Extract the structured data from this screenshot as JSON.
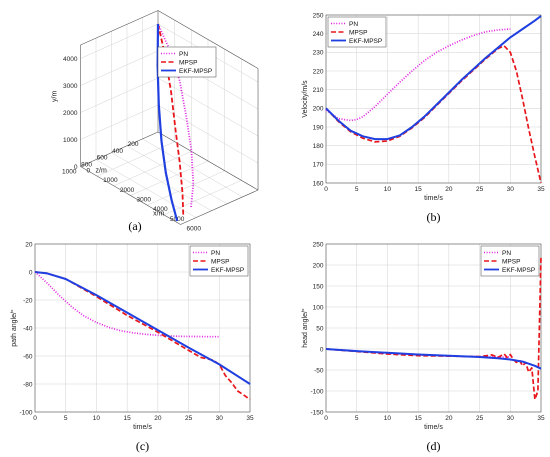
{
  "chart_data": [
    {
      "id": "a",
      "caption": "(a)",
      "type": "line3d",
      "xlabel": "x/m",
      "ylabel": "y/m",
      "zlabel": "z/m",
      "x_ticks": [
        "0",
        "1000",
        "2000",
        "3000",
        "4000",
        "5000",
        "6000"
      ],
      "y_ticks": [
        "0",
        "1000",
        "2000",
        "3000",
        "4000"
      ],
      "z_ticks": [
        "200",
        "400",
        "600",
        "800",
        "1000"
      ],
      "legend": {
        "position": "top-right",
        "entries": [
          "PN",
          "MPSP",
          "EKF-MPSP"
        ]
      },
      "series": [
        {
          "name": "PN",
          "color": "#e020e0",
          "dash": "dot",
          "points": [
            [
              0,
              4000,
              0
            ],
            [
              1000,
              3450,
              60
            ],
            [
              2000,
              2800,
              150
            ],
            [
              3000,
              2000,
              280
            ],
            [
              4000,
              1300,
              430
            ],
            [
              5000,
              650,
              620
            ],
            [
              5600,
              180,
              780
            ]
          ]
        },
        {
          "name": "MPSP",
          "color": "#e8161b",
          "dash": "dash",
          "points": [
            [
              0,
              4000,
              0
            ],
            [
              1000,
              3300,
              120
            ],
            [
              2000,
              2500,
              260
            ],
            [
              3000,
              1700,
              420
            ],
            [
              4000,
              1050,
              580
            ],
            [
              5000,
              500,
              760
            ],
            [
              5700,
              90,
              900
            ]
          ]
        },
        {
          "name": "EKF-MPSP",
          "color": "#1f3fe0",
          "dash": "solid",
          "points": [
            [
              0,
              4000,
              0
            ],
            [
              1000,
              3100,
              220
            ],
            [
              2000,
              2250,
              420
            ],
            [
              3000,
              1500,
              600
            ],
            [
              4000,
              900,
              760
            ],
            [
              5000,
              420,
              900
            ],
            [
              5800,
              60,
              1000
            ]
          ]
        }
      ]
    },
    {
      "id": "b",
      "caption": "(b)",
      "type": "line",
      "xlabel": "time/s",
      "ylabel": "Velocity/m/s",
      "xlim": [
        0,
        35
      ],
      "ylim": [
        160,
        250
      ],
      "x_ticks": [
        0,
        5,
        10,
        15,
        20,
        25,
        30,
        35
      ],
      "y_ticks": [
        160,
        170,
        180,
        190,
        200,
        210,
        220,
        230,
        240,
        250
      ],
      "legend": {
        "position": "top-left",
        "entries": [
          "PN",
          "MPSP",
          "EKF-MPSP"
        ]
      },
      "series": [
        {
          "name": "PN",
          "color": "#e020e0",
          "dash": "dot",
          "x": [
            0,
            2,
            4,
            5,
            6,
            8,
            10,
            12,
            14,
            16,
            18,
            20,
            22,
            24,
            26,
            28,
            30
          ],
          "y": [
            199,
            194.5,
            193.5,
            194,
            195.5,
            201,
            207.5,
            214,
            220,
            225.5,
            230,
            233.5,
            236.5,
            239,
            241,
            242,
            242.5
          ]
        },
        {
          "name": "MPSP",
          "color": "#e8161b",
          "dash": "dash",
          "x": [
            0,
            2,
            4,
            6,
            8,
            10,
            12,
            14,
            16,
            18,
            20,
            22,
            24,
            26,
            28,
            29,
            30,
            31,
            32,
            33,
            34,
            35
          ],
          "y": [
            200,
            193,
            187.5,
            184,
            182,
            182.5,
            185,
            189.5,
            195,
            201.5,
            208,
            214.5,
            220.5,
            226.5,
            232,
            233.5,
            230,
            220,
            205,
            189,
            174,
            160
          ]
        },
        {
          "name": "EKF-MPSP",
          "color": "#1f3fe0",
          "dash": "solid",
          "x": [
            0,
            2,
            4,
            6,
            8,
            10,
            12,
            14,
            16,
            18,
            20,
            22,
            24,
            26,
            28,
            30,
            32,
            34,
            35
          ],
          "y": [
            200,
            193.5,
            188,
            185,
            183.5,
            183.5,
            185.5,
            190,
            195.5,
            202,
            208.5,
            215,
            221,
            227,
            232.5,
            238,
            242.5,
            247,
            249.5
          ]
        }
      ]
    },
    {
      "id": "c",
      "caption": "(c)",
      "type": "line",
      "xlabel": "time/s",
      "ylabel": "path angle/°",
      "xlim": [
        0,
        35
      ],
      "ylim": [
        -100,
        20
      ],
      "x_ticks": [
        0,
        5,
        10,
        15,
        20,
        25,
        30,
        35
      ],
      "y_ticks": [
        -100,
        -80,
        -60,
        -40,
        -20,
        0,
        20
      ],
      "legend": {
        "position": "top-right",
        "entries": [
          "PN",
          "MPSP",
          "EKF-MPSP"
        ]
      },
      "series": [
        {
          "name": "PN",
          "color": "#e020e0",
          "dash": "dot",
          "x": [
            0,
            2,
            4,
            6,
            8,
            10,
            12,
            14,
            16,
            18,
            20,
            22,
            24,
            26,
            28,
            30
          ],
          "y": [
            0,
            -8,
            -17,
            -25,
            -31.5,
            -36,
            -39.5,
            -42,
            -43.5,
            -44.5,
            -45.2,
            -45.7,
            -46,
            -46.1,
            -46.2,
            -46.2
          ]
        },
        {
          "name": "MPSP",
          "color": "#e8161b",
          "dash": "dash",
          "x": [
            0,
            2,
            5,
            10,
            15,
            20,
            25,
            27,
            28,
            29,
            30,
            31,
            32,
            33,
            34,
            35
          ],
          "y": [
            0,
            -1,
            -5,
            -17.5,
            -31,
            -43,
            -56,
            -61,
            -62,
            -63,
            -66,
            -74,
            -79,
            -85,
            -88,
            -91
          ]
        },
        {
          "name": "EKF-MPSP",
          "color": "#1f3fe0",
          "dash": "solid",
          "x": [
            0,
            2,
            5,
            10,
            15,
            20,
            25,
            30,
            35
          ],
          "y": [
            0,
            -1,
            -5,
            -16.5,
            -29,
            -41.5,
            -54,
            -66,
            -80
          ]
        }
      ]
    },
    {
      "id": "d",
      "caption": "(d)",
      "type": "line",
      "xlabel": "time/s",
      "ylabel": "head angle/°",
      "xlim": [
        0,
        35
      ],
      "ylim": [
        -150,
        250
      ],
      "x_ticks": [
        0,
        5,
        10,
        15,
        20,
        25,
        30,
        35
      ],
      "y_ticks": [
        -150,
        -100,
        -50,
        0,
        50,
        100,
        150,
        200,
        250
      ],
      "legend": {
        "position": "top-right",
        "entries": [
          "PN",
          "MPSP",
          "EKF-MPSP"
        ]
      },
      "series": [
        {
          "name": "PN",
          "color": "#e020e0",
          "dash": "dot",
          "x": [
            0,
            5,
            10,
            15,
            20,
            25,
            28,
            30
          ],
          "y": [
            0,
            -5,
            -10,
            -14,
            -17,
            -18,
            -19,
            -19
          ]
        },
        {
          "name": "MPSP",
          "color": "#e8161b",
          "dash": "dash",
          "x": [
            0,
            5,
            10,
            15,
            20,
            25,
            27,
            28,
            29,
            29.5,
            30,
            30.5,
            31,
            31.5,
            32,
            32.5,
            33,
            33.5,
            34,
            34.5,
            35
          ],
          "y": [
            0,
            -6,
            -12,
            -16,
            -17,
            -18,
            -14,
            -20,
            -12,
            -20,
            -13,
            -25,
            -32,
            -27,
            -40,
            -32,
            -55,
            -45,
            -120,
            -100,
            220
          ]
        },
        {
          "name": "EKF-MPSP",
          "color": "#1f3fe0",
          "dash": "solid",
          "x": [
            0,
            5,
            10,
            15,
            20,
            25,
            28,
            30,
            32,
            33,
            34,
            35
          ],
          "y": [
            0,
            -5,
            -9,
            -13,
            -16,
            -19,
            -22,
            -25,
            -30,
            -35,
            -40,
            -47
          ]
        }
      ]
    }
  ]
}
